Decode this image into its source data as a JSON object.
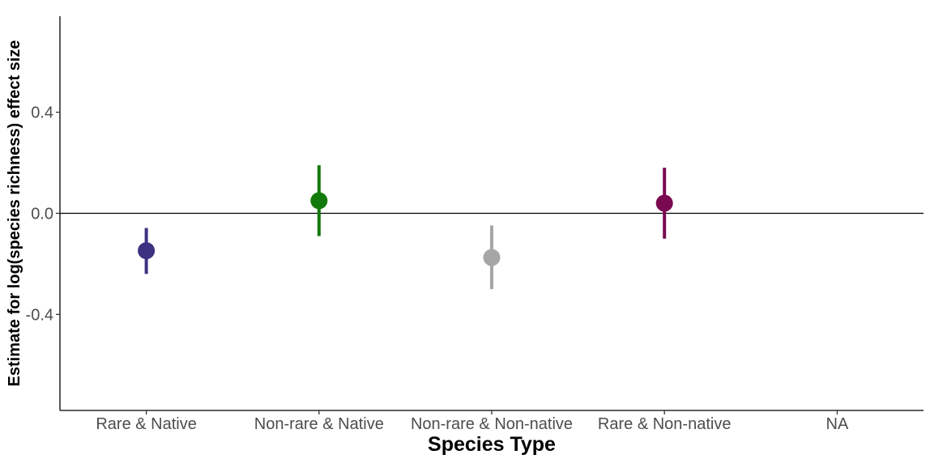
{
  "chart_data": {
    "type": "scatter",
    "title": "",
    "xlabel": "Species Type",
    "ylabel": "Estimate for log(species richness) effect size",
    "categories": [
      "Rare & Native",
      "Non-rare & Native",
      "Non-rare & Non-native",
      "Rare & Non-native",
      "NA"
    ],
    "points": [
      {
        "category": "Rare & Native",
        "estimate": -0.148,
        "lower": -0.24,
        "upper": -0.058,
        "color": "#3b3282"
      },
      {
        "category": "Non-rare & Native",
        "estimate": 0.05,
        "lower": -0.09,
        "upper": 0.19,
        "color": "#127a0a"
      },
      {
        "category": "Non-rare & Non-native",
        "estimate": -0.175,
        "lower": -0.3,
        "upper": -0.048,
        "color": "#a6a6a6"
      },
      {
        "category": "Rare & Non-native",
        "estimate": 0.04,
        "lower": -0.1,
        "upper": 0.18,
        "color": "#7a0a50"
      }
    ],
    "yticks": [
      -0.4,
      0.0,
      0.4
    ],
    "ytick_labels": [
      "-0.4",
      "0.0",
      "0.4"
    ],
    "ylim": [
      -0.78,
      0.78
    ],
    "reference_line": 0.0,
    "grid": false,
    "legend": "none"
  }
}
